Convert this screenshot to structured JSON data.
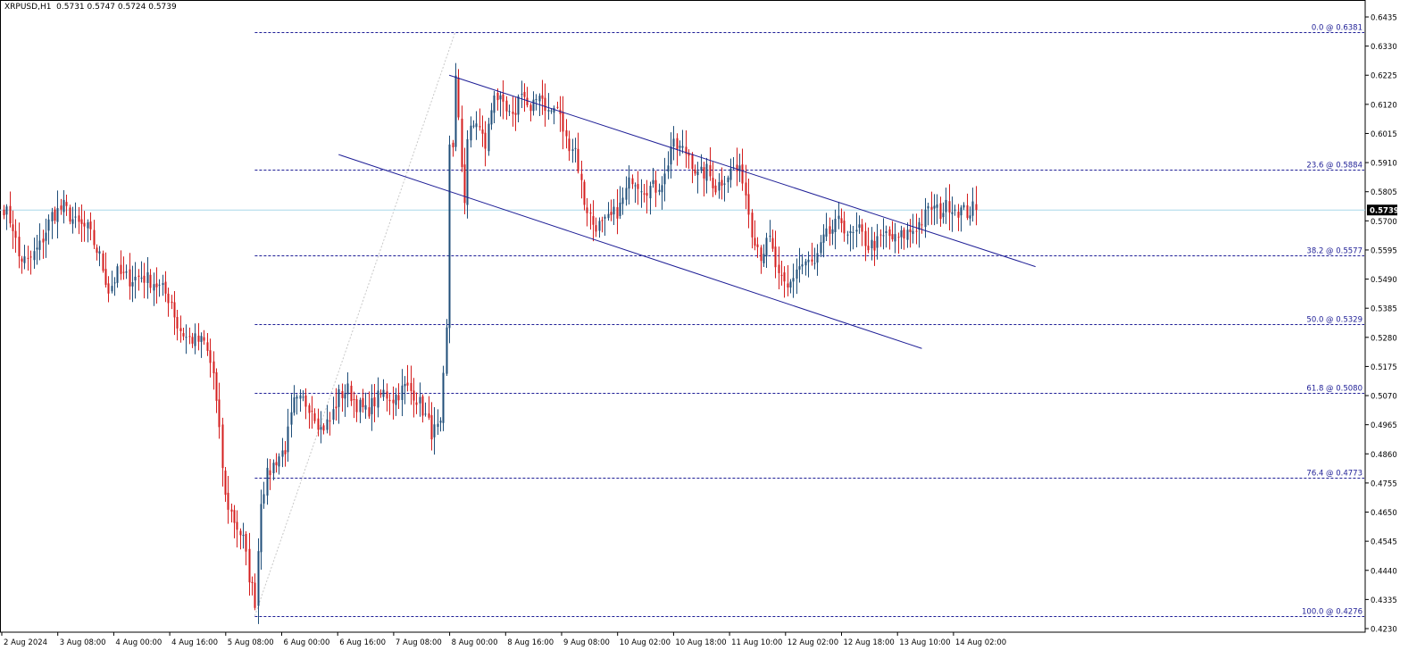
{
  "header": {
    "symbol": "XRPUSD,H1",
    "ohlc": "0.5731 0.5747 0.5724 0.5739"
  },
  "colors": {
    "background": "#ffffff",
    "frame": "#000000",
    "bull_candle": "#1f4e79",
    "bear_candle": "#d41e1e",
    "fib_line": "#1e1e96",
    "fib_text": "#1e1e96",
    "channel_line": "#1e1e96",
    "price_line": "#a8d8e8",
    "price_badge_bg": "#000000",
    "price_badge_text": "#ffffff",
    "fib_base_line": "#c8c8c8"
  },
  "chart_data": {
    "type": "candlestick",
    "symbol": "XRPUSD",
    "timeframe": "H1",
    "current_price": "0.5739",
    "y_axis": {
      "min": 0.423,
      "max": 0.6435,
      "tick_labels": [
        "0.6435",
        "0.6330",
        "0.6225",
        "0.6120",
        "0.6015",
        "0.5910",
        "0.5805",
        "0.5700",
        "0.5595",
        "0.5490",
        "0.5385",
        "0.5280",
        "0.5175",
        "0.5070",
        "0.4965",
        "0.4860",
        "0.4755",
        "0.4650",
        "0.4545",
        "0.4440",
        "0.4335",
        "0.4230"
      ]
    },
    "x_axis": {
      "tick_labels": [
        "2 Aug 2024",
        "3 Aug 08:00",
        "4 Aug 00:00",
        "4 Aug 16:00",
        "5 Aug 08:00",
        "6 Aug 00:00",
        "6 Aug 16:00",
        "7 Aug 08:00",
        "8 Aug 00:00",
        "8 Aug 16:00",
        "9 Aug 08:00",
        "10 Aug 02:00",
        "10 Aug 18:00",
        "11 Aug 10:00",
        "12 Aug 02:00",
        "12 Aug 18:00",
        "13 Aug 10:00",
        "14 Aug 02:00"
      ]
    },
    "fibonacci": [
      {
        "label": "0.0 @ 0.6381",
        "price": 0.6381
      },
      {
        "label": "23.6 @ 0.5884",
        "price": 0.5884
      },
      {
        "label": "38.2 @ 0.5577",
        "price": 0.5577
      },
      {
        "label": "50.0 @ 0.5329",
        "price": 0.5329
      },
      {
        "label": "61.8 @ 0.5080",
        "price": 0.508
      },
      {
        "label": "76.4 @ 0.4773",
        "price": 0.4773
      },
      {
        "label": "100.0 @ 0.4276",
        "price": 0.4276
      }
    ],
    "fib_anchor": {
      "start_bar": 84,
      "start_price": 0.4276,
      "end_bar": 151,
      "end_price": 0.6381
    },
    "channel": {
      "upper": {
        "start_bar": 149,
        "start_price": 0.6225,
        "end_bar": 345,
        "end_price": 0.5535
      },
      "lower": {
        "start_bar": 112,
        "start_price": 0.5939,
        "end_bar": 307,
        "end_price": 0.524
      }
    },
    "waypoints": [
      [
        0,
        0.575
      ],
      [
        3,
        0.568
      ],
      [
        5,
        0.557
      ],
      [
        8,
        0.555
      ],
      [
        12,
        0.561
      ],
      [
        16,
        0.572
      ],
      [
        20,
        0.575
      ],
      [
        24,
        0.569
      ],
      [
        28,
        0.567
      ],
      [
        32,
        0.557
      ],
      [
        35,
        0.545
      ],
      [
        38,
        0.551
      ],
      [
        42,
        0.549
      ],
      [
        46,
        0.55
      ],
      [
        50,
        0.548
      ],
      [
        53,
        0.545
      ],
      [
        56,
        0.541
      ],
      [
        58,
        0.532
      ],
      [
        61,
        0.528
      ],
      [
        64,
        0.527
      ],
      [
        67,
        0.526
      ],
      [
        70,
        0.515
      ],
      [
        72,
        0.493
      ],
      [
        74,
        0.47
      ],
      [
        77,
        0.462
      ],
      [
        80,
        0.455
      ],
      [
        82,
        0.442
      ],
      [
        84,
        0.433
      ],
      [
        86,
        0.47
      ],
      [
        88,
        0.478
      ],
      [
        91,
        0.484
      ],
      [
        94,
        0.488
      ],
      [
        97,
        0.504
      ],
      [
        100,
        0.505
      ],
      [
        103,
        0.503
      ],
      [
        106,
        0.495
      ],
      [
        109,
        0.498
      ],
      [
        112,
        0.507
      ],
      [
        115,
        0.509
      ],
      [
        118,
        0.504
      ],
      [
        121,
        0.501
      ],
      [
        124,
        0.505
      ],
      [
        127,
        0.508
      ],
      [
        130,
        0.506
      ],
      [
        134,
        0.51
      ],
      [
        137,
        0.508
      ],
      [
        140,
        0.502
      ],
      [
        143,
        0.494
      ],
      [
        146,
        0.495
      ],
      [
        148,
        0.53
      ],
      [
        149,
        0.598
      ],
      [
        150,
        0.598
      ],
      [
        151,
        0.621
      ],
      [
        152,
        0.605
      ],
      [
        153,
        0.59
      ],
      [
        154,
        0.578
      ],
      [
        155,
        0.6
      ],
      [
        158,
        0.606
      ],
      [
        161,
        0.597
      ],
      [
        164,
        0.617
      ],
      [
        167,
        0.61
      ],
      [
        170,
        0.606
      ],
      [
        173,
        0.618
      ],
      [
        176,
        0.608
      ],
      [
        179,
        0.617
      ],
      [
        182,
        0.609
      ],
      [
        185,
        0.611
      ],
      [
        188,
        0.599
      ],
      [
        191,
        0.596
      ],
      [
        194,
        0.577
      ],
      [
        197,
        0.569
      ],
      [
        200,
        0.568
      ],
      [
        203,
        0.571
      ],
      [
        206,
        0.575
      ],
      [
        210,
        0.586
      ],
      [
        214,
        0.582
      ],
      [
        218,
        0.582
      ],
      [
        221,
        0.586
      ],
      [
        223,
        0.597
      ],
      [
        226,
        0.596
      ],
      [
        229,
        0.594
      ],
      [
        232,
        0.586
      ],
      [
        235,
        0.588
      ],
      [
        238,
        0.582
      ],
      [
        241,
        0.586
      ],
      [
        244,
        0.589
      ],
      [
        247,
        0.586
      ],
      [
        250,
        0.567
      ],
      [
        253,
        0.558
      ],
      [
        256,
        0.563
      ],
      [
        259,
        0.549
      ],
      [
        262,
        0.545
      ],
      [
        265,
        0.553
      ],
      [
        268,
        0.555
      ],
      [
        271,
        0.554
      ],
      [
        274,
        0.563
      ],
      [
        277,
        0.567
      ],
      [
        280,
        0.57
      ],
      [
        283,
        0.564
      ],
      [
        286,
        0.566
      ],
      [
        289,
        0.561
      ],
      [
        292,
        0.562
      ],
      [
        295,
        0.565
      ],
      [
        298,
        0.563
      ],
      [
        301,
        0.565
      ],
      [
        304,
        0.567
      ],
      [
        307,
        0.57
      ],
      [
        310,
        0.575
      ],
      [
        313,
        0.573
      ],
      [
        316,
        0.576
      ],
      [
        319,
        0.574
      ],
      [
        322,
        0.573
      ],
      [
        325,
        0.575
      ]
    ]
  }
}
